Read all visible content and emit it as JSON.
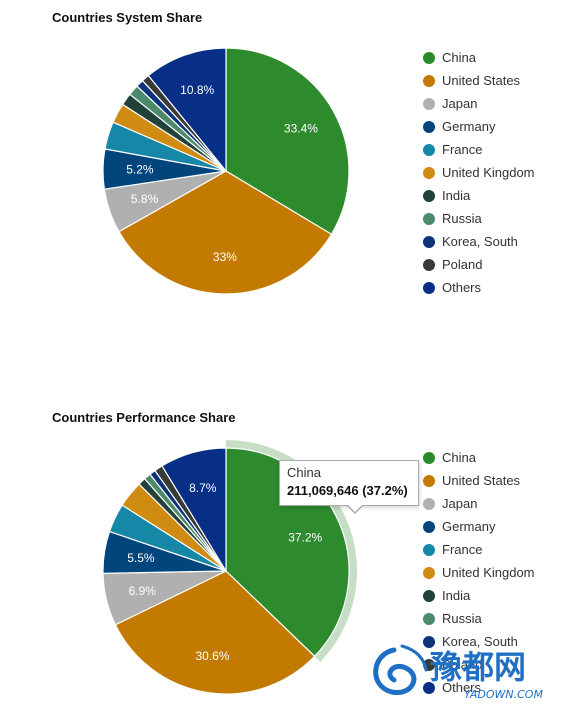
{
  "chart_data": [
    {
      "type": "pie",
      "title": "Countries System Share",
      "categories": [
        "China",
        "United States",
        "Japan",
        "Germany",
        "France",
        "United Kingdom",
        "India",
        "Russia",
        "Korea, South",
        "Poland",
        "Others"
      ],
      "values": [
        33.4,
        33.0,
        5.8,
        5.2,
        3.6,
        2.6,
        1.6,
        1.4,
        1.0,
        1.0,
        10.8
      ],
      "labels": [
        "33.4%",
        "33%",
        "5.8%",
        "5.2%",
        "",
        "",
        "",
        "",
        "",
        "",
        "10.8%"
      ],
      "colors": [
        "#2d8a2d",
        "#c27b00",
        "#b0b0b0",
        "#00457b",
        "#1787a8",
        "#d08b13",
        "#22413a",
        "#4c8a6b",
        "#0c347a",
        "#393939",
        "#062f85"
      ],
      "legend_position": "right"
    },
    {
      "type": "pie",
      "title": "Countries Performance Share",
      "categories": [
        "China",
        "United States",
        "Japan",
        "Germany",
        "France",
        "United Kingdom",
        "India",
        "Russia",
        "Korea, South",
        "Poland",
        "Others"
      ],
      "values": [
        37.2,
        30.6,
        6.9,
        5.5,
        3.8,
        3.5,
        1.0,
        0.9,
        0.8,
        1.1,
        8.7
      ],
      "labels": [
        "37.2%",
        "30.6%",
        "6.9%",
        "5.5%",
        "",
        "",
        "",
        "",
        "",
        "",
        "8.7%"
      ],
      "colors": [
        "#2d8a2d",
        "#c27b00",
        "#b0b0b0",
        "#00457b",
        "#1787a8",
        "#d08b13",
        "#22413a",
        "#4c8a6b",
        "#0c347a",
        "#393939",
        "#062f85"
      ],
      "legend_position": "right",
      "highlighted_index": 0,
      "tooltip": {
        "category": "China",
        "value_text": "211,069,646 (37.2%)"
      }
    }
  ],
  "watermark": {
    "text": "豫都网",
    "subtext": "YADOWN.COM",
    "color": "#1f6fc4"
  }
}
